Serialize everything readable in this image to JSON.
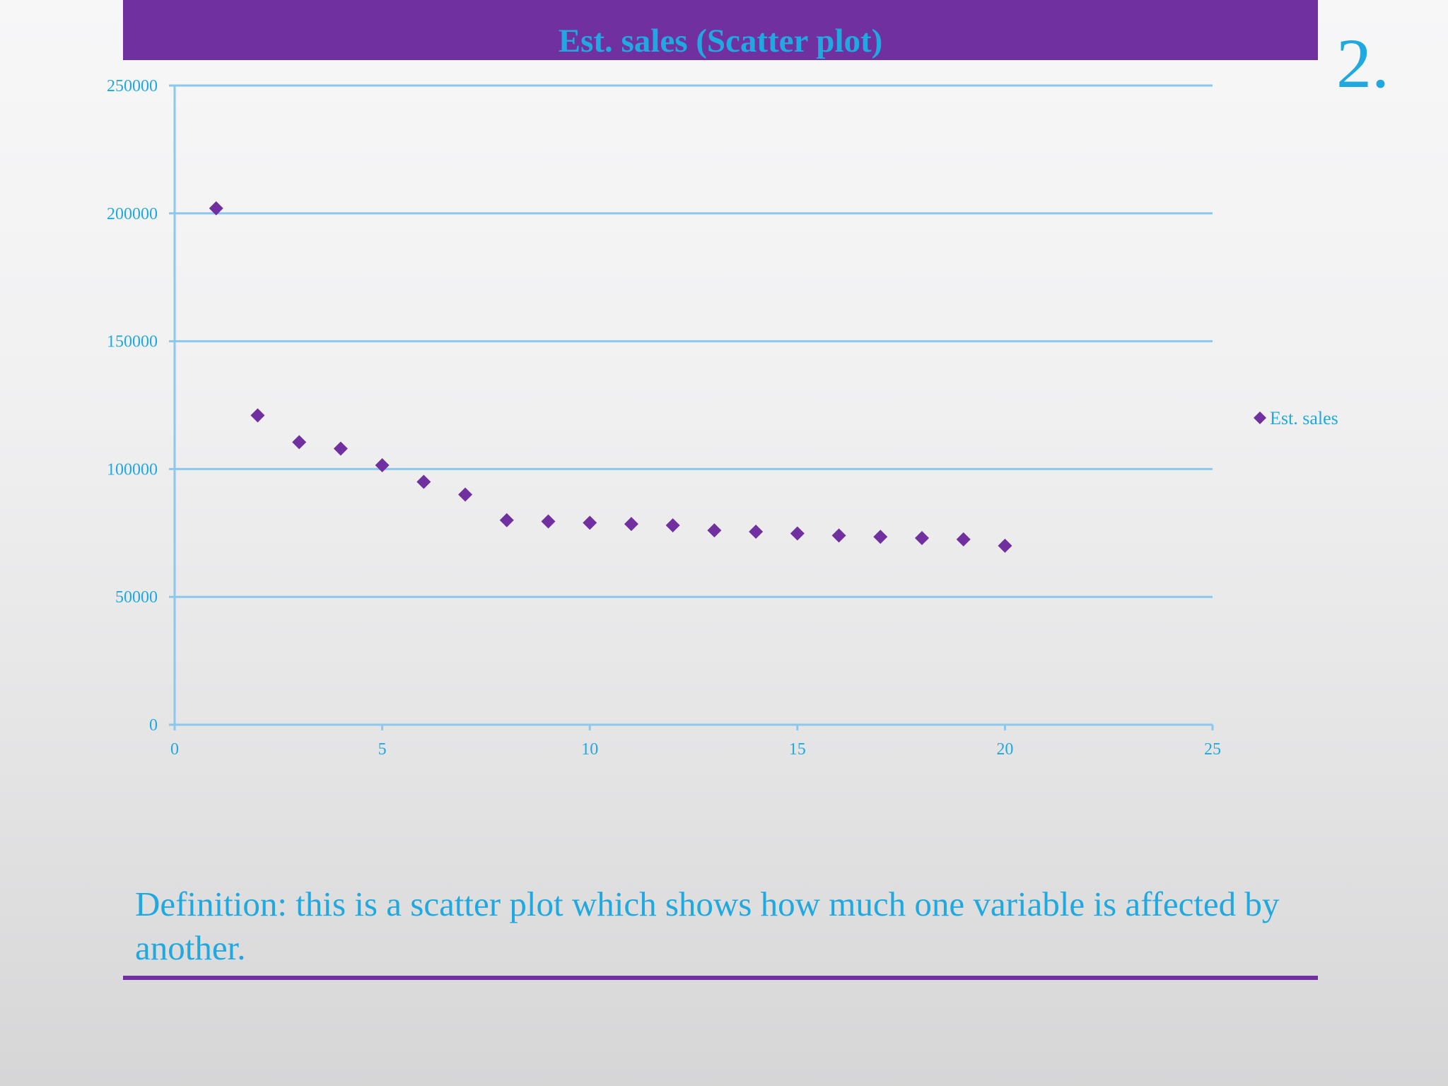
{
  "slide": {
    "title": "Est. sales (Scatter plot)",
    "number": "2.",
    "definition": "Definition: this is a scatter plot which shows how much one variable is affected by another."
  },
  "colors": {
    "accent_purple": "#7030a0",
    "text_blue": "#1fa9e0",
    "gridline_blue": "#8cc8ee",
    "marker": "#7030a0"
  },
  "chart_data": {
    "type": "scatter",
    "title": "",
    "xlabel": "",
    "ylabel": "",
    "xlim": [
      0,
      25
    ],
    "ylim": [
      0,
      250000
    ],
    "x_ticks": [
      0,
      5,
      10,
      15,
      20,
      25
    ],
    "y_ticks": [
      0,
      50000,
      100000,
      150000,
      200000,
      250000
    ],
    "grid": "horizontal",
    "legend_position": "right",
    "marker": "diamond",
    "series": [
      {
        "name": "Est. sales",
        "x": [
          1,
          2,
          3,
          4,
          5,
          6,
          7,
          8,
          9,
          10,
          11,
          12,
          13,
          14,
          15,
          16,
          17,
          18,
          19,
          20
        ],
        "y": [
          202000,
          121000,
          110500,
          108000,
          101500,
          95000,
          90000,
          80000,
          79500,
          79000,
          78500,
          78000,
          76000,
          75500,
          74800,
          74000,
          73500,
          73000,
          72500,
          70000
        ]
      }
    ]
  }
}
